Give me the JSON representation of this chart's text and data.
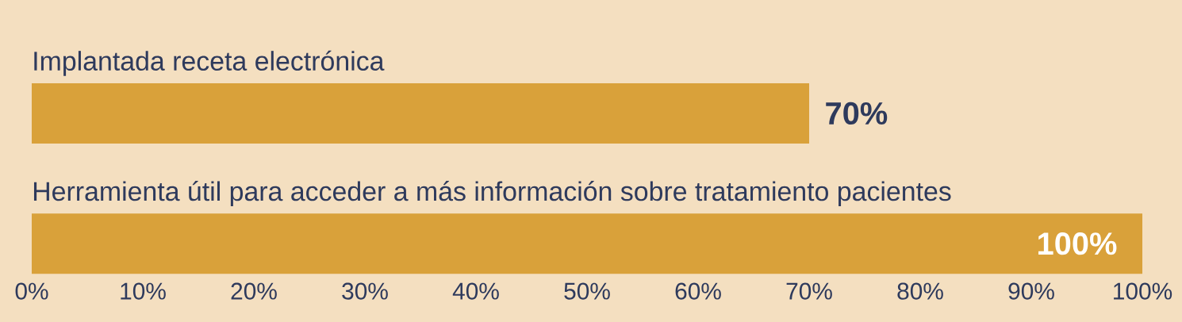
{
  "chart_data": {
    "type": "bar",
    "orientation": "horizontal",
    "categories": [
      "Implantada receta electrónica",
      "Herramienta útil para acceder a más información sobre tratamiento pacientes"
    ],
    "values": [
      70,
      100
    ],
    "color": "#d9a13a",
    "value_labels": [
      "70%",
      "100%"
    ],
    "xlim": [
      0,
      100
    ],
    "xticks": [
      {
        "value": 0,
        "label": "0%"
      },
      {
        "value": 10,
        "label": "10%"
      },
      {
        "value": 20,
        "label": "20%"
      },
      {
        "value": 30,
        "label": "30%"
      },
      {
        "value": 40,
        "label": "40%"
      },
      {
        "value": 50,
        "label": "50%"
      },
      {
        "value": 60,
        "label": "60%"
      },
      {
        "value": 70,
        "label": "70%"
      },
      {
        "value": 80,
        "label": "80%"
      },
      {
        "value": 90,
        "label": "90%"
      },
      {
        "value": 100,
        "label": "100%"
      }
    ],
    "grid": false
  }
}
